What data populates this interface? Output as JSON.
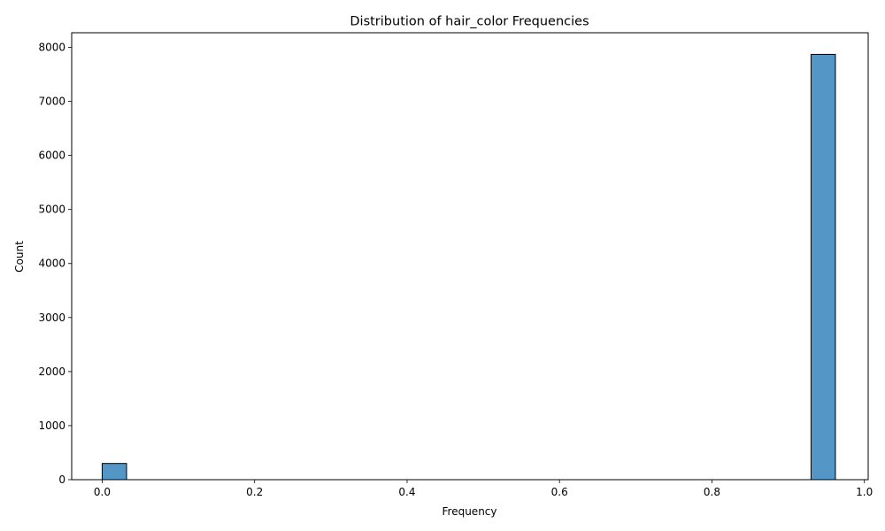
{
  "chart_data": {
    "type": "bar",
    "title": "Distribution of hair_color Frequencies",
    "xlabel": "Frequency",
    "ylabel": "Count",
    "xlim": [
      -0.04,
      1.005
    ],
    "ylim": [
      0,
      8270
    ],
    "x_ticks": [
      0.0,
      0.2,
      0.4,
      0.6,
      0.8,
      1.0
    ],
    "x_tick_labels": [
      "0.0",
      "0.2",
      "0.4",
      "0.6",
      "0.8",
      "1.0"
    ],
    "y_ticks": [
      0,
      1000,
      2000,
      3000,
      4000,
      5000,
      6000,
      7000,
      8000
    ],
    "y_tick_labels": [
      "0",
      "1000",
      "2000",
      "3000",
      "4000",
      "5000",
      "6000",
      "7000",
      "8000"
    ],
    "bins": [
      {
        "x_start": 0.0,
        "x_end": 0.032,
        "count": 300
      },
      {
        "x_start": 0.93,
        "x_end": 0.962,
        "count": 7870
      }
    ],
    "grid": false,
    "bar_color": "#5497c6",
    "edge_color": "#000000"
  }
}
